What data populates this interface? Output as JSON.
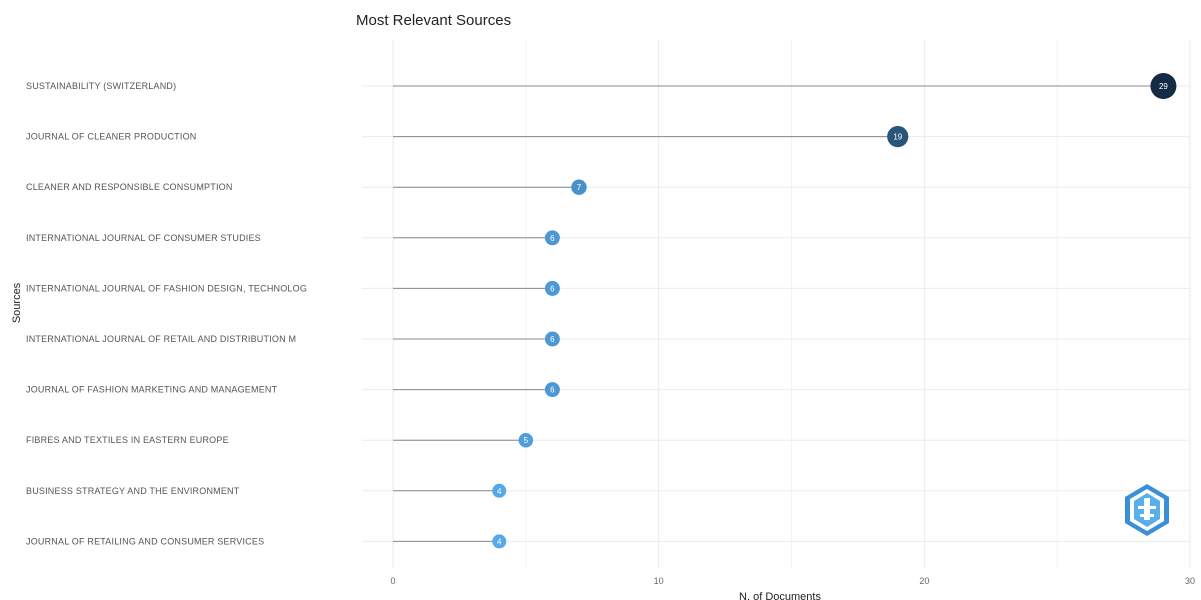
{
  "chart_data": {
    "type": "lollipop",
    "title": "Most Relevant Sources",
    "xlabel": "N. of Documents",
    "ylabel": "Sources",
    "xlim": [
      0,
      30
    ],
    "xticks": [
      "0",
      "10",
      "20",
      "30"
    ],
    "grid": true,
    "categories": [
      "SUSTAINABILITY (SWITZERLAND)",
      "JOURNAL OF CLEANER PRODUCTION",
      "CLEANER AND RESPONSIBLE CONSUMPTION",
      "INTERNATIONAL JOURNAL OF CONSUMER STUDIES",
      "INTERNATIONAL JOURNAL OF FASHION DESIGN, TECHNOLOG",
      "INTERNATIONAL JOURNAL OF RETAIL AND DISTRIBUTION M",
      "JOURNAL OF FASHION MARKETING AND MANAGEMENT",
      "FIBRES AND TEXTILES IN EASTERN EUROPE",
      "BUSINESS STRATEGY AND THE ENVIRONMENT",
      "JOURNAL OF RETAILING AND CONSUMER SERVICES"
    ],
    "values": [
      29,
      19,
      7,
      6,
      6,
      6,
      6,
      5,
      4,
      4
    ],
    "value_labels": [
      "29",
      "19",
      "7",
      "6",
      "6",
      "6",
      "6",
      "5",
      "4",
      "4"
    ],
    "colors": {
      "low": "#56a8e8",
      "high": "#132b43",
      "stem": "#888888",
      "grid": "#ebebeb"
    }
  }
}
